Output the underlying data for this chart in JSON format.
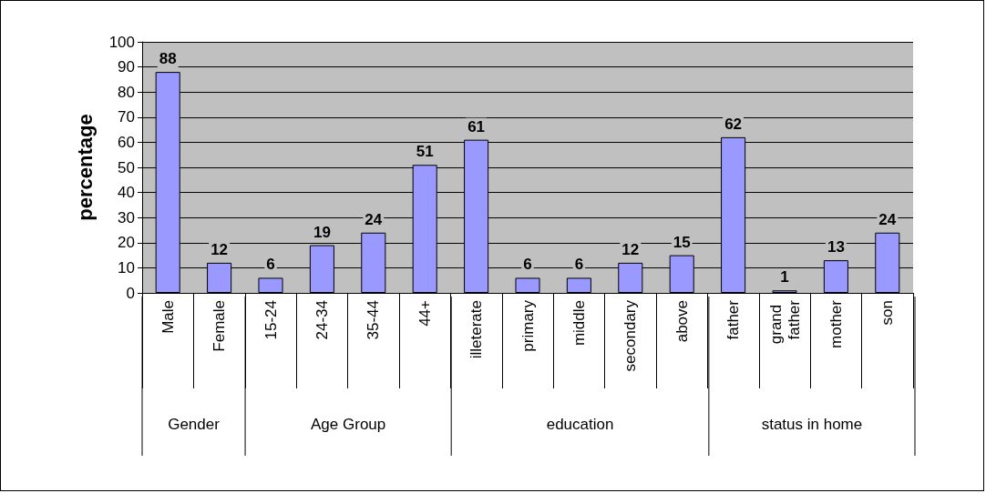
{
  "chart_data": {
    "type": "bar",
    "ylabel": "percentage",
    "categories": [
      "Male",
      "Female",
      "15-24",
      "24-34",
      "35-44",
      "44+",
      "illeterate",
      "primary",
      "middle",
      "secondary",
      "above",
      "father",
      "grand father",
      "mother",
      "son"
    ],
    "values": [
      88,
      12,
      6,
      19,
      24,
      51,
      61,
      6,
      6,
      12,
      15,
      62,
      1,
      13,
      24
    ],
    "color": "#9999ff",
    "data_labels": true,
    "grid": "y",
    "ylim": [
      0,
      100
    ],
    "yticks": [
      0,
      10,
      20,
      30,
      40,
      50,
      60,
      70,
      80,
      90,
      100
    ],
    "annotations": [
      "Gender",
      "Age Group",
      "education",
      "status in home"
    ]
  }
}
